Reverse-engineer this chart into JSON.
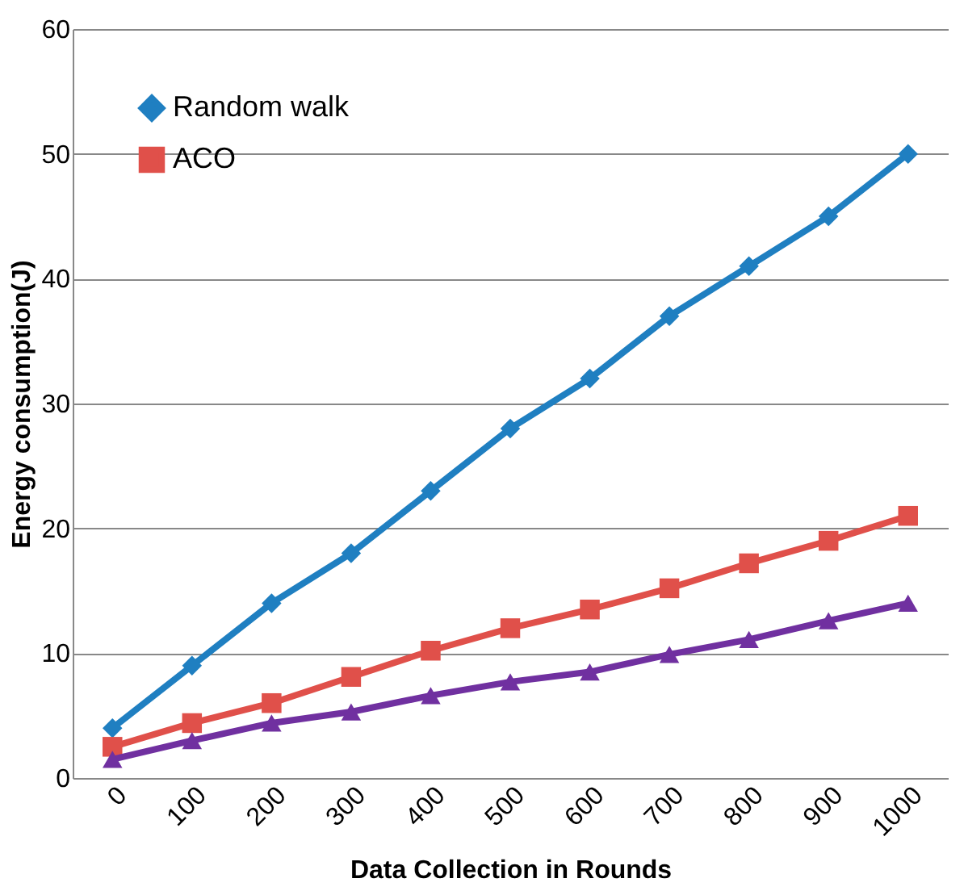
{
  "chart_data": {
    "type": "line",
    "xlabel": "Data Collection in Rounds",
    "ylabel": "Energy consumption(J)",
    "categories": [
      "0",
      "100",
      "200",
      "300",
      "400",
      "500",
      "600",
      "700",
      "800",
      "900",
      "1000"
    ],
    "series": [
      {
        "name": "Random walk",
        "color": "#1f7fc1",
        "marker": "diamond",
        "values": [
          4,
          9,
          14,
          18,
          23,
          28,
          32,
          37,
          41,
          45,
          50
        ]
      },
      {
        "name": "ACO",
        "color": "#e0504a",
        "marker": "square",
        "values": [
          2.5,
          4.4,
          6,
          8.1,
          10.2,
          12,
          13.5,
          15.2,
          17.2,
          19,
          21
        ]
      },
      {
        "color": "#7030a0",
        "marker": "triangle",
        "values": [
          1.5,
          3,
          4.4,
          5.3,
          6.6,
          7.7,
          8.5,
          9.9,
          11.1,
          12.6,
          14
        ]
      }
    ],
    "ylim": [
      0,
      60
    ],
    "yticks": [
      0,
      10,
      20,
      30,
      40,
      50,
      60
    ],
    "grid": "y",
    "legend": "top left",
    "line_style": "solid"
  }
}
